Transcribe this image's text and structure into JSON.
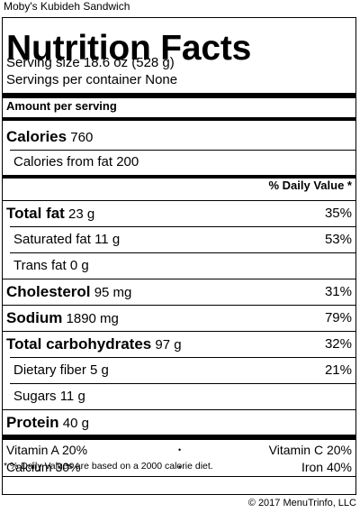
{
  "header": {
    "product_name": "Moby's Kubideh Sandwich"
  },
  "label": {
    "title": "Nutrition Facts",
    "serving_size": "Serving size 18.6 oz (528 g)",
    "servings_per_container": "Servings per container None",
    "amount_per_serving": "Amount per serving",
    "calories_label": "Calories",
    "calories_value": "760",
    "calories_from_fat": "Calories from fat 200",
    "daily_value_header": "% Daily Value *",
    "nutrients": [
      {
        "name": "Total fat",
        "amount": "23 g",
        "dv": "35%"
      },
      {
        "name": "Saturated fat",
        "amount": "11 g",
        "dv": "53%"
      },
      {
        "name": "Trans fat",
        "amount": "0 g",
        "dv": ""
      },
      {
        "name": "Cholesterol",
        "amount": "95 mg",
        "dv": "31%"
      },
      {
        "name": "Sodium",
        "amount": "1890 mg",
        "dv": "79%"
      },
      {
        "name": "Total carbohydrates",
        "amount": "97 g",
        "dv": "32%"
      },
      {
        "name": "Dietary fiber",
        "amount": "5 g",
        "dv": "21%"
      },
      {
        "name": "Sugars",
        "amount": "11 g",
        "dv": ""
      },
      {
        "name": "Protein",
        "amount": "40 g",
        "dv": ""
      }
    ],
    "vitamins": {
      "vitamin_a": "Vitamin A 20%",
      "vitamin_c": "Vitamin C 20%",
      "calcium": "Calcium 30%",
      "iron": "Iron 40%",
      "separator": "•"
    },
    "footnote": "* % Daily Values are based on a 2000 calorie diet."
  },
  "footer": {
    "copyright": "© 2017 MenuTrinfo, LLC"
  }
}
